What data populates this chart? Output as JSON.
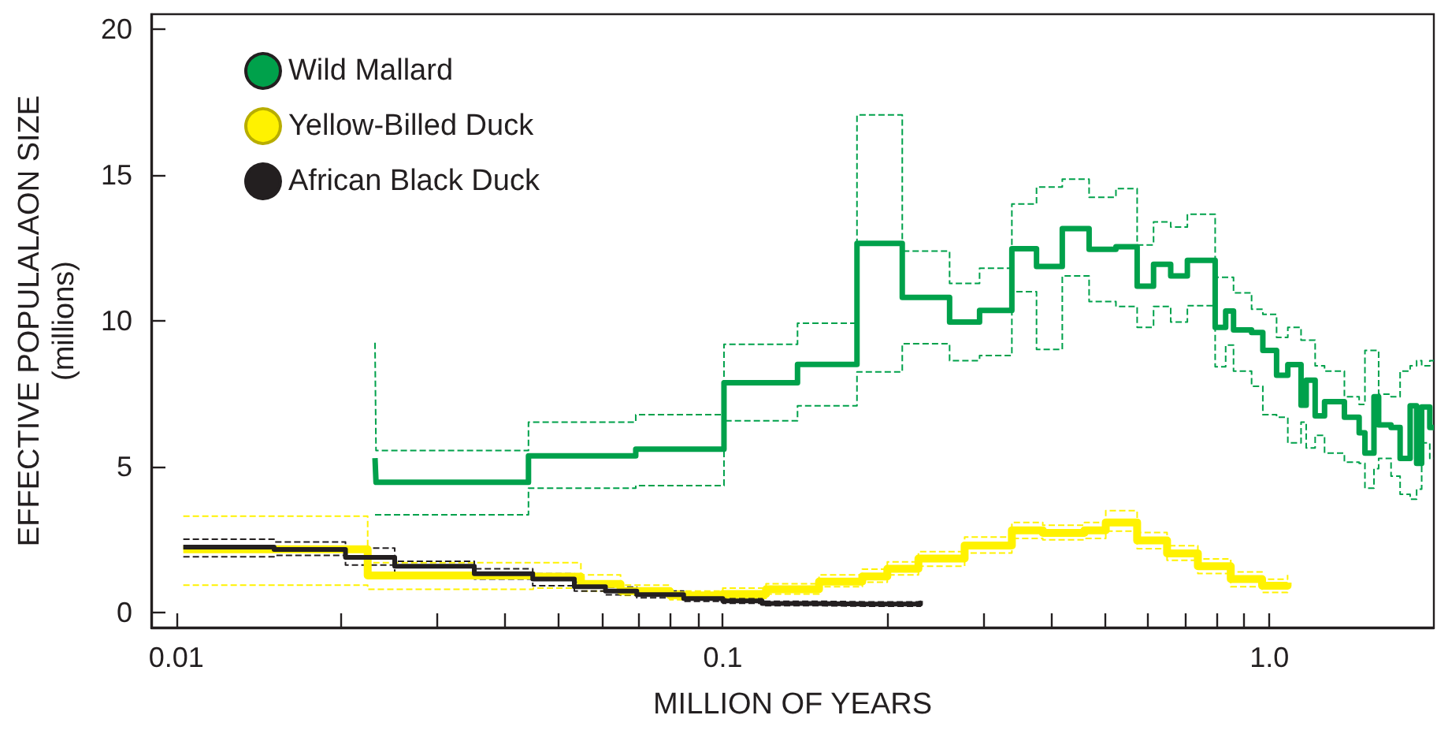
{
  "chart_data": {
    "type": "step",
    "xlabel": "MILLION OF YEARS",
    "ylabel": "EFFECTIVE POPULALAON SIZE\n(millions)",
    "log": "x",
    "xlim": [
      0.009,
      2
    ],
    "xticks": [
      0.01,
      {
        "value": 0.02,
        "label": null
      },
      {
        "value": 0.03,
        "label": null
      },
      {
        "value": 0.04,
        "label": null
      },
      {
        "value": 0.05,
        "label": null
      },
      {
        "value": 0.06,
        "label": null
      },
      {
        "value": 0.07,
        "label": null
      },
      {
        "value": 0.08,
        "label": null
      },
      {
        "value": 0.09,
        "label": null
      },
      0.1,
      {
        "value": 0.2,
        "label": null
      },
      {
        "value": 0.3,
        "label": null
      },
      {
        "value": 0.4,
        "label": null
      },
      {
        "value": 0.5,
        "label": null
      },
      {
        "value": 0.6,
        "label": null
      },
      {
        "value": 0.7,
        "label": null
      },
      {
        "value": 0.8,
        "label": null
      },
      {
        "value": 0.9,
        "label": null
      },
      {
        "value": 1,
        "label": "1.0"
      }
    ],
    "ylim": [
      -0.5,
      20.5
    ],
    "yticks": [
      0,
      5,
      10,
      15,
      20
    ],
    "legend": "top left",
    "series": [
      {
        "color": "#00a14b",
        "line_style": "dashed",
        "x": [
          0.0231,
          0.0232,
          0.0441,
          0.0693,
          0.1005,
          0.137,
          0.176,
          0.213,
          0.26,
          0.295,
          0.338,
          0.375,
          0.418,
          0.468,
          0.524,
          0.573,
          0.614,
          0.66,
          0.708,
          0.796,
          0.832,
          0.86,
          0.928,
          0.973,
          1.031,
          1.081,
          1.143,
          1.168,
          1.213,
          1.262,
          1.372,
          1.46,
          1.496,
          1.554,
          1.585,
          1.67,
          1.735,
          1.81,
          1.86,
          1.9,
          1.966,
          2.0
        ],
        "values": [
          9.25,
          5.56,
          6.53,
          6.79,
          9.2,
          9.92,
          17.05,
          12.39,
          11.28,
          11.8,
          14.0,
          14.58,
          14.85,
          14.23,
          14.53,
          12.6,
          13.39,
          13.21,
          13.65,
          11.49,
          11.49,
          10.96,
          10.4,
          10.22,
          9.43,
          9.78,
          9.34,
          9.34,
          8.46,
          8.28,
          7.4,
          7.14,
          8.99,
          8.99,
          7.49,
          7.4,
          8.28,
          8.46,
          8.64,
          8.46,
          8.64,
          8.64
        ]
      },
      {
        "color": "#00a14b",
        "line_style": "dashed",
        "x": [
          0.0231,
          0.0232,
          0.0441,
          0.0693,
          0.1005,
          0.137,
          0.176,
          0.213,
          0.26,
          0.295,
          0.338,
          0.375,
          0.418,
          0.468,
          0.524,
          0.573,
          0.614,
          0.66,
          0.708,
          0.796,
          0.832,
          0.86,
          0.928,
          0.973,
          1.031,
          1.081,
          1.143,
          1.168,
          1.213,
          1.262,
          1.372,
          1.46,
          1.496,
          1.554,
          1.585,
          1.67,
          1.735,
          1.81,
          1.86,
          1.9,
          1.966,
          2.0
        ],
        "values": [
          3.36,
          3.36,
          4.27,
          4.36,
          6.58,
          7.09,
          8.25,
          9.22,
          8.64,
          8.81,
          11.0,
          9.02,
          11.54,
          10.66,
          10.49,
          9.78,
          10.49,
          9.96,
          10.52,
          8.43,
          9.17,
          8.28,
          7.76,
          6.79,
          6.7,
          5.82,
          6.53,
          5.65,
          6.08,
          5.47,
          5.16,
          5.12,
          4.27,
          4.94,
          5.29,
          4.68,
          4.06,
          3.89,
          4.24,
          5.82,
          5.29,
          5.29
        ]
      },
      {
        "color": "#fff200",
        "line_style": "dashed",
        "x": [
          0.0103,
          0.0224,
          0.045,
          0.055,
          0.065,
          0.08,
          0.1,
          0.12,
          0.15,
          0.18,
          0.2,
          0.228,
          0.277,
          0.338,
          0.385,
          0.459,
          0.502,
          0.573,
          0.65,
          0.74,
          0.85,
          0.97,
          1.08
        ],
        "values": [
          3.31,
          1.72,
          1.72,
          1.3,
          0.95,
          0.75,
          0.85,
          1.0,
          1.3,
          1.5,
          1.75,
          2.1,
          2.6,
          3.1,
          3.0,
          3.1,
          3.5,
          2.75,
          2.3,
          1.85,
          1.4,
          1.15,
          1.3
        ]
      },
      {
        "color": "#fff200",
        "line_style": "dashed",
        "x": [
          0.0103,
          0.0224,
          0.045,
          0.055,
          0.065,
          0.08,
          0.1,
          0.12,
          0.15,
          0.18,
          0.2,
          0.228,
          0.277,
          0.338,
          0.385,
          0.459,
          0.502,
          0.573,
          0.65,
          0.74,
          0.85,
          0.97,
          1.08
        ],
        "values": [
          0.95,
          0.81,
          0.85,
          0.75,
          0.6,
          0.45,
          0.5,
          0.65,
          0.9,
          1.05,
          1.3,
          1.6,
          2.05,
          2.55,
          2.5,
          2.55,
          2.8,
          2.2,
          1.8,
          1.35,
          0.9,
          0.7,
          0.8
        ]
      },
      {
        "color": "#231f20",
        "line_style": "dashed",
        "x": [
          0.0103,
          0.0151,
          0.0204,
          0.0251,
          0.0351,
          0.0449,
          0.0535,
          0.061,
          0.0696,
          0.0848,
          0.1,
          0.118,
          0.146,
          0.183,
          0.23
        ],
        "values": [
          2.52,
          2.43,
          2.22,
          1.77,
          1.51,
          1.34,
          1.05,
          0.88,
          0.75,
          0.6,
          0.5,
          0.4,
          0.38,
          0.38,
          0.48
        ]
      },
      {
        "color": "#231f20",
        "line_style": "dashed",
        "x": [
          0.0103,
          0.0151,
          0.0204,
          0.0251,
          0.0351,
          0.0449,
          0.0535,
          0.061,
          0.0696,
          0.0848,
          0.1,
          0.118,
          0.146,
          0.183,
          0.23
        ],
        "values": [
          1.92,
          1.97,
          1.64,
          1.39,
          1.16,
          0.93,
          0.75,
          0.62,
          0.52,
          0.4,
          0.33,
          0.25,
          0.23,
          0.23,
          0.34
        ]
      },
      {
        "name": "Wild Mallard",
        "color": "#00a14b",
        "x": [
          0.0231,
          0.0232,
          0.0441,
          0.0693,
          0.1005,
          0.137,
          0.176,
          0.213,
          0.26,
          0.295,
          0.338,
          0.375,
          0.418,
          0.468,
          0.524,
          0.573,
          0.614,
          0.66,
          0.708,
          0.796,
          0.832,
          0.86,
          0.928,
          0.973,
          1.031,
          1.081,
          1.143,
          1.168,
          1.213,
          1.262,
          1.372,
          1.46,
          1.496,
          1.554,
          1.585,
          1.67,
          1.735,
          1.81,
          1.86,
          1.9,
          1.966,
          2.0
        ],
        "values": [
          5.3,
          4.47,
          5.38,
          5.61,
          7.88,
          8.51,
          12.65,
          10.8,
          9.96,
          10.36,
          12.47,
          11.86,
          13.16,
          12.45,
          12.54,
          11.19,
          11.94,
          11.54,
          12.07,
          9.78,
          10.34,
          9.69,
          9.6,
          8.99,
          8.14,
          8.5,
          7.11,
          7.97,
          6.75,
          7.23,
          6.7,
          6.17,
          5.47,
          7.4,
          6.44,
          6.35,
          5.29,
          7.09,
          5.12,
          7.05,
          6.35,
          6.35
        ]
      },
      {
        "name": "Yellow-Billed Duck",
        "color": "#fff200",
        "x": [
          0.0103,
          0.0224,
          0.045,
          0.055,
          0.065,
          0.08,
          0.1,
          0.12,
          0.15,
          0.18,
          0.2,
          0.228,
          0.277,
          0.338,
          0.385,
          0.459,
          0.502,
          0.573,
          0.65,
          0.74,
          0.85,
          0.97,
          1.08
        ],
        "values": [
          2.18,
          1.28,
          1.24,
          0.99,
          0.75,
          0.6,
          0.65,
          0.81,
          1.07,
          1.25,
          1.51,
          1.86,
          2.31,
          2.83,
          2.74,
          2.83,
          3.1,
          2.48,
          2.04,
          1.6,
          1.16,
          0.93,
          1.04
        ]
      },
      {
        "name": "African Black Duck",
        "color": "#231f20",
        "x": [
          0.0103,
          0.0151,
          0.0204,
          0.0251,
          0.0351,
          0.0449,
          0.0535,
          0.061,
          0.0696,
          0.0848,
          0.1,
          0.118,
          0.146,
          0.183,
          0.23
        ],
        "values": [
          2.25,
          2.17,
          1.9,
          1.6,
          1.34,
          1.16,
          0.9,
          0.75,
          0.63,
          0.49,
          0.41,
          0.32,
          0.3,
          0.3,
          0.41
        ]
      }
    ]
  }
}
